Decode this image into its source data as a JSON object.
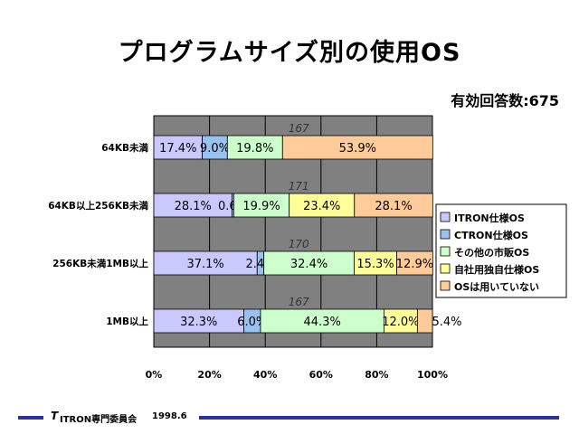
{
  "chart_data": {
    "type": "bar",
    "orientation": "horizontal",
    "stacked": "percent",
    "title": "プログラムサイズ別の使用OS",
    "subtitle": "有効回答数:675",
    "categories": [
      "64KB未満",
      "64KB以上256KB未満",
      "256KB未満1MB以上",
      "1MB以上"
    ],
    "totals": [
      "167",
      "171",
      "170",
      "167"
    ],
    "series": [
      {
        "name": "ITRON仕様OS",
        "color": "#c9c9ff",
        "values": [
          17.4,
          28.1,
          37.1,
          32.3
        ]
      },
      {
        "name": "CTRON仕様OS",
        "color": "#9ac2f0",
        "values": [
          9.0,
          0.6,
          2.4,
          6.0
        ]
      },
      {
        "name": "その他の市販OS",
        "color": "#ccffcc",
        "values": [
          19.8,
          19.9,
          32.4,
          44.3
        ]
      },
      {
        "name": "自社用独自仕様OS",
        "color": "#ffff99",
        "values": [
          0,
          23.4,
          15.3,
          12.0
        ]
      },
      {
        "name": "OSは用いていない",
        "color": "#ffcc99",
        "values": [
          53.9,
          28.1,
          12.9,
          5.4
        ]
      }
    ],
    "data_labels": [
      [
        "17.4%",
        "9.0%",
        "19.8%",
        "",
        "53.9%"
      ],
      [
        "28.1%",
        "0.6%",
        "19.9%",
        "23.4%",
        "28.1%"
      ],
      [
        "37.1%",
        "2.4%",
        "32.4%",
        "15.3%",
        "12.9%"
      ],
      [
        "32.3%",
        "6.0%",
        "44.3%",
        "12.0%",
        "5.4%"
      ]
    ],
    "xlim": [
      0,
      100
    ],
    "xticks": [
      "0%",
      "20%",
      "40%",
      "60%",
      "80%",
      "100%"
    ],
    "grid": true,
    "plot_background": "#808080",
    "legend_position": "right"
  },
  "footer": {
    "logo": "T",
    "org": "ITRON専門委員会",
    "date": "1998.6"
  }
}
